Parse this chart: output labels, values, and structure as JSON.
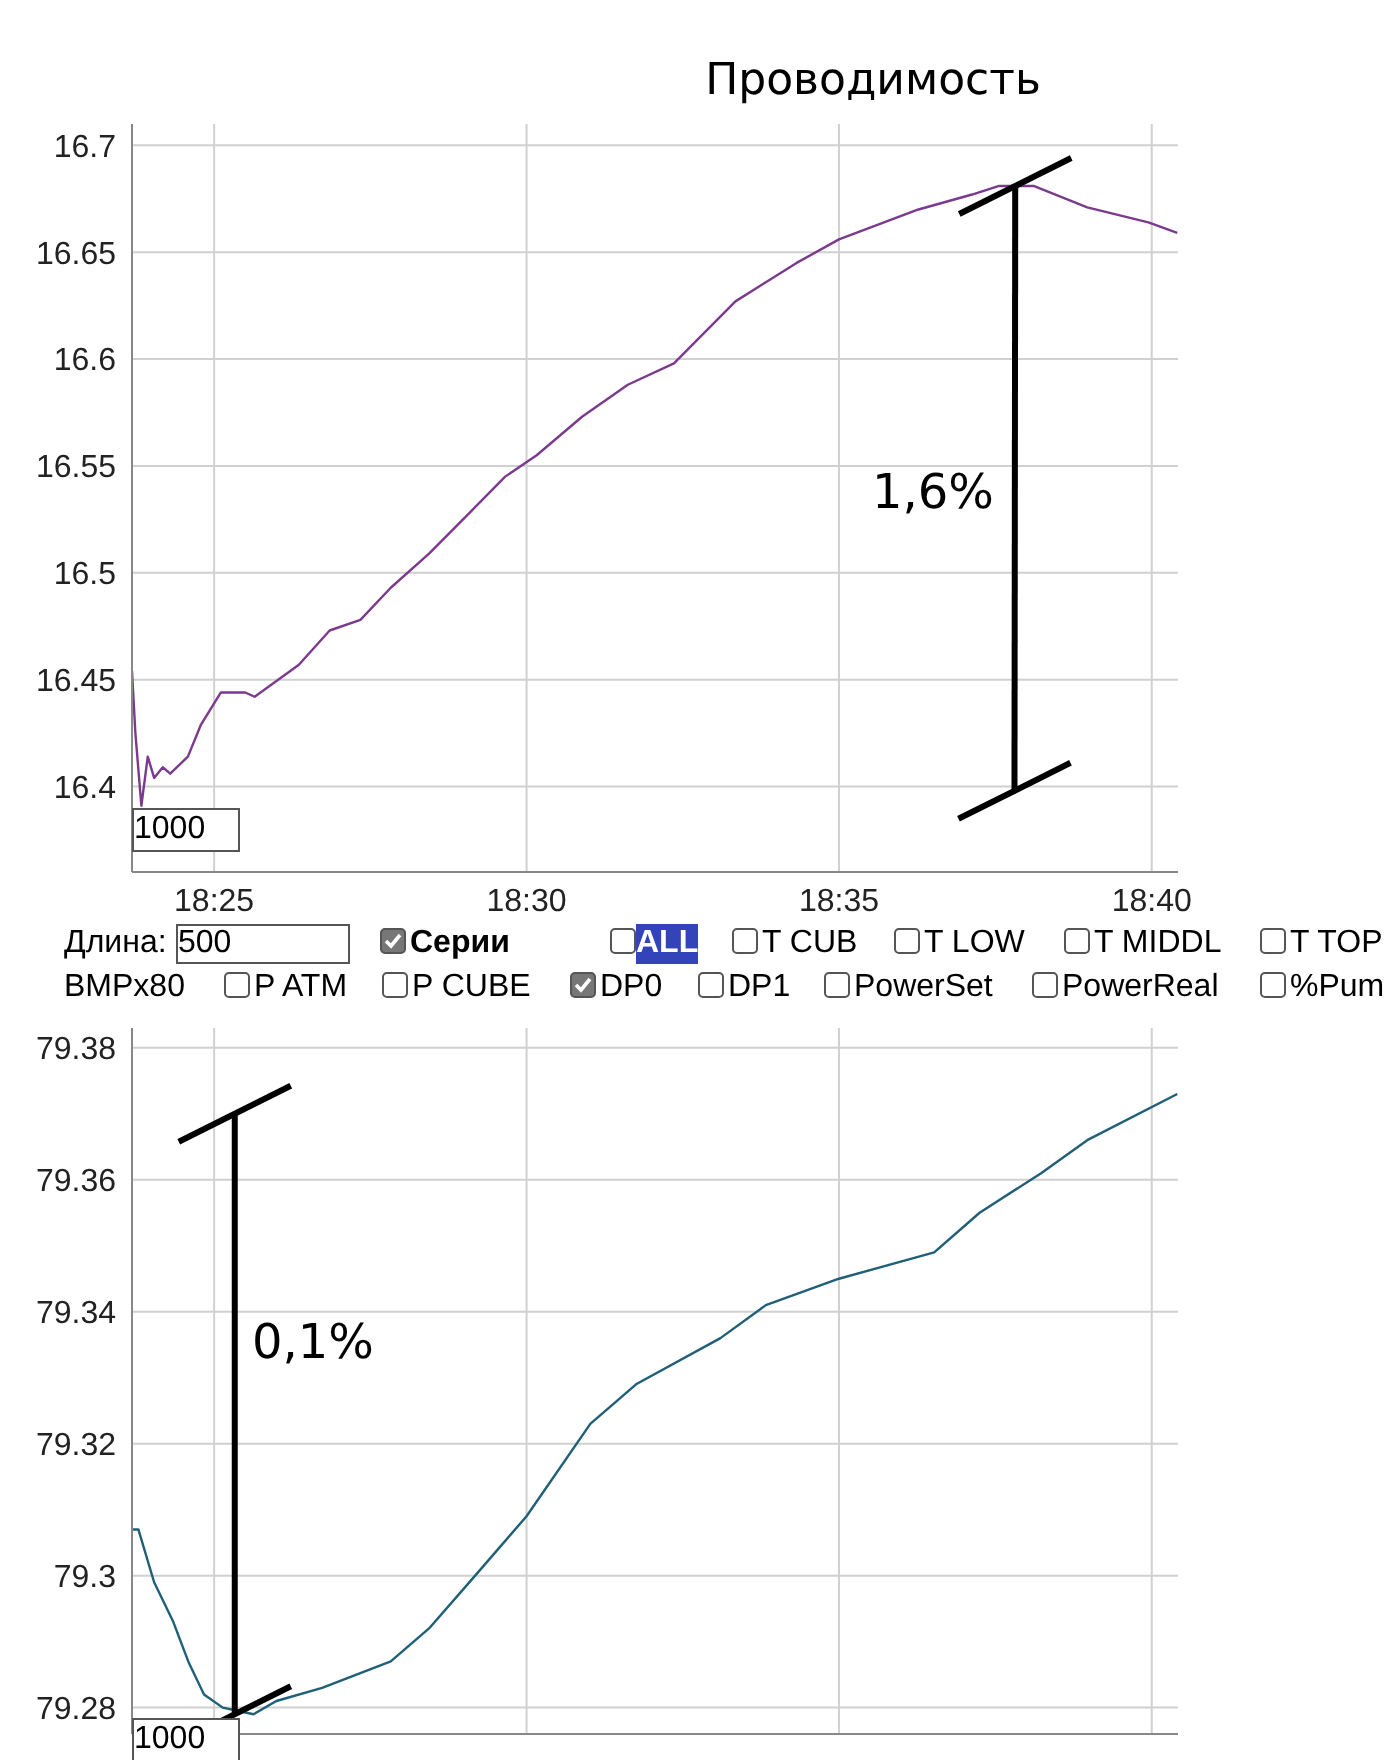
{
  "chart_data": [
    {
      "type": "line",
      "title": "Проводимость",
      "grid": true,
      "x": [
        18.3948,
        18.3957,
        18.3973,
        18.399,
        18.4007,
        18.403,
        18.405,
        18.4097,
        18.4132,
        18.4185,
        18.425,
        18.4275,
        18.4393,
        18.4475,
        18.4557,
        18.4638,
        18.474,
        18.4842,
        18.4943,
        18.5027,
        18.5148,
        18.527,
        18.5393,
        18.5557,
        18.572,
        18.5833,
        18.6045,
        18.6188,
        18.626,
        18.6352,
        18.6495,
        18.6658,
        18.6735
      ],
      "series": [
        {
          "color": "#7b3a8e",
          "values": [
            16.454,
            16.425,
            16.391,
            16.414,
            16.404,
            16.409,
            16.406,
            16.414,
            16.429,
            16.444,
            16.444,
            16.442,
            16.457,
            16.473,
            16.478,
            16.493,
            16.509,
            16.527,
            16.545,
            16.555,
            16.573,
            16.588,
            16.598,
            16.627,
            16.645,
            16.656,
            16.67,
            16.677,
            16.681,
            16.681,
            16.671,
            16.664,
            16.659
          ]
        },
        {
          "type": "line",
          "color": "#000000",
          "x": [
            18.6301,
            18.6303
          ],
          "values": [
            16.398,
            16.681
          ]
        }
      ],
      "xlim": [
        18.3948,
        18.6737
      ],
      "xticks": [
        {
          "value": 18.4167,
          "label": "18:25"
        },
        {
          "value": 18.5,
          "label": "18:30"
        },
        {
          "value": 18.5833,
          "label": "18:35"
        },
        {
          "value": 18.6667,
          "label": "18:40"
        }
      ],
      "ylim": [
        16.36,
        16.71
      ],
      "yticks": [
        16.4,
        16.45,
        16.5,
        16.55,
        16.6,
        16.65,
        16.7
      ],
      "annotations": [
        "1,6%",
        "1000"
      ]
    },
    {
      "type": "other",
      "annotations": [
        "Длина:",
        "500",
        "Серии",
        "ALL",
        "T CUB",
        "T LOW",
        "T MIDDL",
        "T TOP",
        "BMPx80",
        "P ATM",
        "P CUBE",
        "DP0",
        "DP1",
        "PowerSet",
        "PowerReal",
        "%Pum"
      ]
    },
    {
      "type": "line",
      "grid": true,
      "tick_labels": "y",
      "x": [
        18.3948,
        18.3965,
        18.4007,
        18.4058,
        18.4098,
        18.414,
        18.419,
        18.4272,
        18.4333,
        18.4455,
        18.4638,
        18.474,
        18.4863,
        18.5,
        18.517,
        18.5292,
        18.5517,
        18.5638,
        18.5833,
        18.6087,
        18.6208,
        18.6372,
        18.6495,
        18.6735
      ],
      "series": [
        {
          "color": "#1f5f78",
          "values": [
            79.307,
            79.307,
            79.299,
            79.293,
            79.287,
            79.282,
            79.28,
            79.279,
            79.281,
            79.283,
            79.287,
            79.292,
            79.3,
            79.309,
            79.323,
            79.329,
            79.336,
            79.341,
            79.345,
            79.349,
            79.355,
            79.361,
            79.366,
            79.373
          ]
        },
        {
          "type": "line",
          "color": "#000000",
          "x": [
            18.4222,
            18.4222
          ],
          "values": [
            79.279,
            79.37
          ]
        }
      ],
      "xlim": [
        18.3948,
        18.6737
      ],
      "xticks": [
        18.4167,
        18.5,
        18.5833,
        18.6667
      ],
      "ylim": [
        79.276,
        79.383
      ],
      "yticks": [
        79.28,
        79.3,
        79.32,
        79.34,
        79.36,
        79.38
      ],
      "annotations": [
        "0,1%",
        "1000"
      ]
    }
  ]
}
